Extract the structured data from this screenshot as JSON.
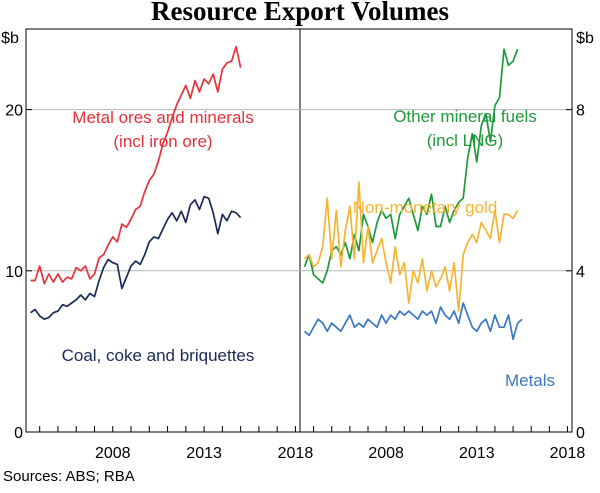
{
  "chart_data": {
    "type": "line",
    "title": "Resource Export Volumes",
    "source": "Sources: ABS; RBA",
    "panels": [
      {
        "name": "left",
        "ylabel": "$b",
        "ylim": [
          0,
          25
        ],
        "yticks": [
          0,
          10,
          20
        ],
        "xlim": [
          2003.75,
          2018.75
        ],
        "xticks": [
          2008,
          2013,
          2018
        ],
        "series": [
          {
            "name": "Metal ores and minerals",
            "label_lines": [
              "Metal ores and minerals",
              "(incl iron ore)"
            ],
            "color": "#e8313a",
            "x_start": 2004.0,
            "x_step": 0.25,
            "values": [
              9.4,
              9.4,
              10.3,
              9.2,
              9.8,
              9.3,
              9.8,
              9.3,
              9.6,
              9.5,
              10.2,
              10.0,
              10.3,
              9.5,
              9.8,
              10.8,
              11.0,
              11.6,
              12.1,
              11.8,
              12.9,
              12.7,
              13.2,
              13.8,
              14.0,
              14.9,
              15.6,
              16.0,
              16.8,
              17.9,
              18.6,
              19.5,
              20.3,
              20.9,
              21.5,
              20.7,
              21.8,
              21.1,
              21.9,
              21.6,
              22.2,
              21.1,
              22.5,
              22.9,
              23.0,
              23.9,
              22.6
            ]
          },
          {
            "name": "Coal, coke and briquettes",
            "label_lines": [
              "Coal, coke and briquettes"
            ],
            "color": "#1a2b56",
            "x_start": 2004.0,
            "x_step": 0.25,
            "values": [
              7.4,
              7.6,
              7.2,
              7.0,
              7.1,
              7.4,
              7.5,
              7.9,
              7.8,
              8.0,
              8.2,
              8.5,
              8.2,
              8.6,
              8.4,
              9.4,
              10.2,
              10.7,
              10.5,
              10.4,
              8.9,
              9.6,
              10.3,
              10.6,
              10.4,
              11.0,
              11.8,
              12.1,
              12.0,
              12.6,
              13.2,
              13.6,
              13.1,
              13.7,
              13.0,
              14.1,
              14.4,
              13.8,
              14.6,
              14.5,
              13.6,
              12.3,
              13.5,
              13.1,
              13.7,
              13.6,
              13.3
            ]
          }
        ]
      },
      {
        "name": "right",
        "ylabel": "$b",
        "ylim": [
          0,
          10
        ],
        "yticks": [
          0,
          4,
          8
        ],
        "xlim": [
          2003.75,
          2018.75
        ],
        "xticks": [
          2008,
          2013,
          2018
        ],
        "series": [
          {
            "name": "Other mineral fuels",
            "label_lines": [
              "Other mineral fuels",
              "(incl LNG)"
            ],
            "color": "#1e9a3a",
            "x_start": 2004.0,
            "x_step": 0.25,
            "values": [
              4.1,
              4.4,
              3.9,
              3.8,
              3.7,
              4.0,
              4.5,
              4.6,
              4.4,
              4.7,
              4.3,
              4.9,
              4.5,
              5.4,
              5.1,
              4.7,
              5.2,
              5.5,
              5.3,
              5.4,
              4.8,
              5.4,
              5.6,
              5.8,
              5.4,
              5.0,
              5.6,
              5.4,
              5.9,
              5.1,
              5.1,
              5.6,
              5.2,
              5.5,
              5.7,
              5.8,
              6.8,
              7.4,
              6.7,
              7.6,
              7.9,
              7.2,
              8.1,
              8.3,
              9.5,
              9.1,
              9.2,
              9.5
            ]
          },
          {
            "name": "Non-monetary gold",
            "label_lines": [
              "Non-monetary gold"
            ],
            "color": "#f5b532",
            "x_start": 2004.0,
            "x_step": 0.25,
            "values": [
              4.3,
              4.4,
              4.1,
              4.2,
              4.6,
              5.8,
              4.3,
              5.5,
              4.1,
              5.0,
              5.6,
              4.3,
              6.2,
              4.2,
              5.1,
              4.2,
              4.5,
              4.8,
              4.2,
              3.7,
              4.6,
              3.9,
              4.2,
              3.2,
              4.0,
              3.7,
              4.3,
              3.5,
              4.0,
              3.6,
              3.8,
              4.1,
              3.5,
              4.2,
              3.0,
              4.4,
              4.7,
              4.9,
              4.7,
              5.2,
              5.0,
              4.8,
              5.5,
              4.7,
              5.4,
              5.4,
              5.3,
              5.5
            ]
          },
          {
            "name": "Metals",
            "label_lines": [
              "Metals"
            ],
            "color": "#3a78c0",
            "x_start": 2004.0,
            "x_step": 0.25,
            "values": [
              2.5,
              2.4,
              2.6,
              2.8,
              2.7,
              2.5,
              2.7,
              2.6,
              2.5,
              2.7,
              2.9,
              2.6,
              2.7,
              2.6,
              2.8,
              2.7,
              2.6,
              2.9,
              2.7,
              2.9,
              2.8,
              3.0,
              2.9,
              3.0,
              2.9,
              2.8,
              3.0,
              2.9,
              3.0,
              2.7,
              3.1,
              2.9,
              2.8,
              3.0,
              2.7,
              3.2,
              2.9,
              2.6,
              2.5,
              2.7,
              2.8,
              2.5,
              2.9,
              2.6,
              2.6,
              2.9,
              2.3,
              2.7,
              2.8
            ]
          }
        ]
      }
    ]
  }
}
